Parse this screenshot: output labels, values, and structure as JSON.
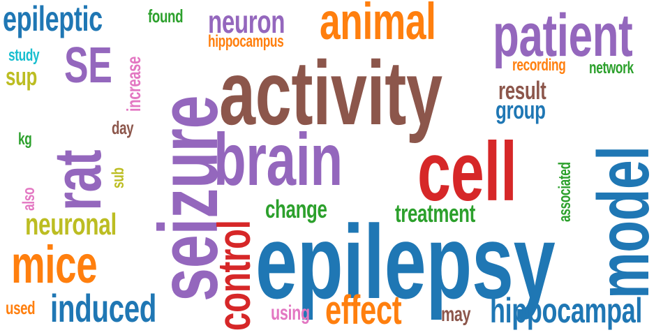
{
  "palette": {
    "blue": "#1f77b4",
    "orange": "#ff7f0e",
    "purple": "#9467bd",
    "brown": "#8c564b",
    "red": "#d62728",
    "green": "#2ca02c",
    "pink": "#e377c2",
    "olive": "#bcbd22",
    "cyan": "#17becf"
  },
  "words": [
    {
      "text": "epileptic",
      "color": "blue"
    },
    {
      "text": "found",
      "color": "green"
    },
    {
      "text": "neuron",
      "color": "purple"
    },
    {
      "text": "animal",
      "color": "orange"
    },
    {
      "text": "patient",
      "color": "purple"
    },
    {
      "text": "hippocampus",
      "color": "orange"
    },
    {
      "text": "study",
      "color": "cyan"
    },
    {
      "text": "SE",
      "color": "purple"
    },
    {
      "text": "sup",
      "color": "olive"
    },
    {
      "text": "increase",
      "color": "pink"
    },
    {
      "text": "seizure",
      "color": "purple"
    },
    {
      "text": "activity",
      "color": "brown"
    },
    {
      "text": "recording",
      "color": "orange"
    },
    {
      "text": "network",
      "color": "green"
    },
    {
      "text": "result",
      "color": "brown"
    },
    {
      "text": "group",
      "color": "blue"
    },
    {
      "text": "day",
      "color": "brown"
    },
    {
      "text": "rat",
      "color": "purple"
    },
    {
      "text": "kg",
      "color": "green"
    },
    {
      "text": "sub",
      "color": "olive"
    },
    {
      "text": "brain",
      "color": "purple"
    },
    {
      "text": "cell",
      "color": "red"
    },
    {
      "text": "model",
      "color": "blue"
    },
    {
      "text": "associated",
      "color": "green"
    },
    {
      "text": "also",
      "color": "pink"
    },
    {
      "text": "change",
      "color": "green"
    },
    {
      "text": "treatment",
      "color": "green"
    },
    {
      "text": "control",
      "color": "red"
    },
    {
      "text": "neuronal",
      "color": "olive"
    },
    {
      "text": "epilepsy",
      "color": "blue"
    },
    {
      "text": "mice",
      "color": "orange"
    },
    {
      "text": "used",
      "color": "orange"
    },
    {
      "text": "induced",
      "color": "blue"
    },
    {
      "text": "using",
      "color": "pink"
    },
    {
      "text": "effect",
      "color": "orange"
    },
    {
      "text": "may",
      "color": "brown"
    },
    {
      "text": "hippocampal",
      "color": "blue"
    }
  ]
}
